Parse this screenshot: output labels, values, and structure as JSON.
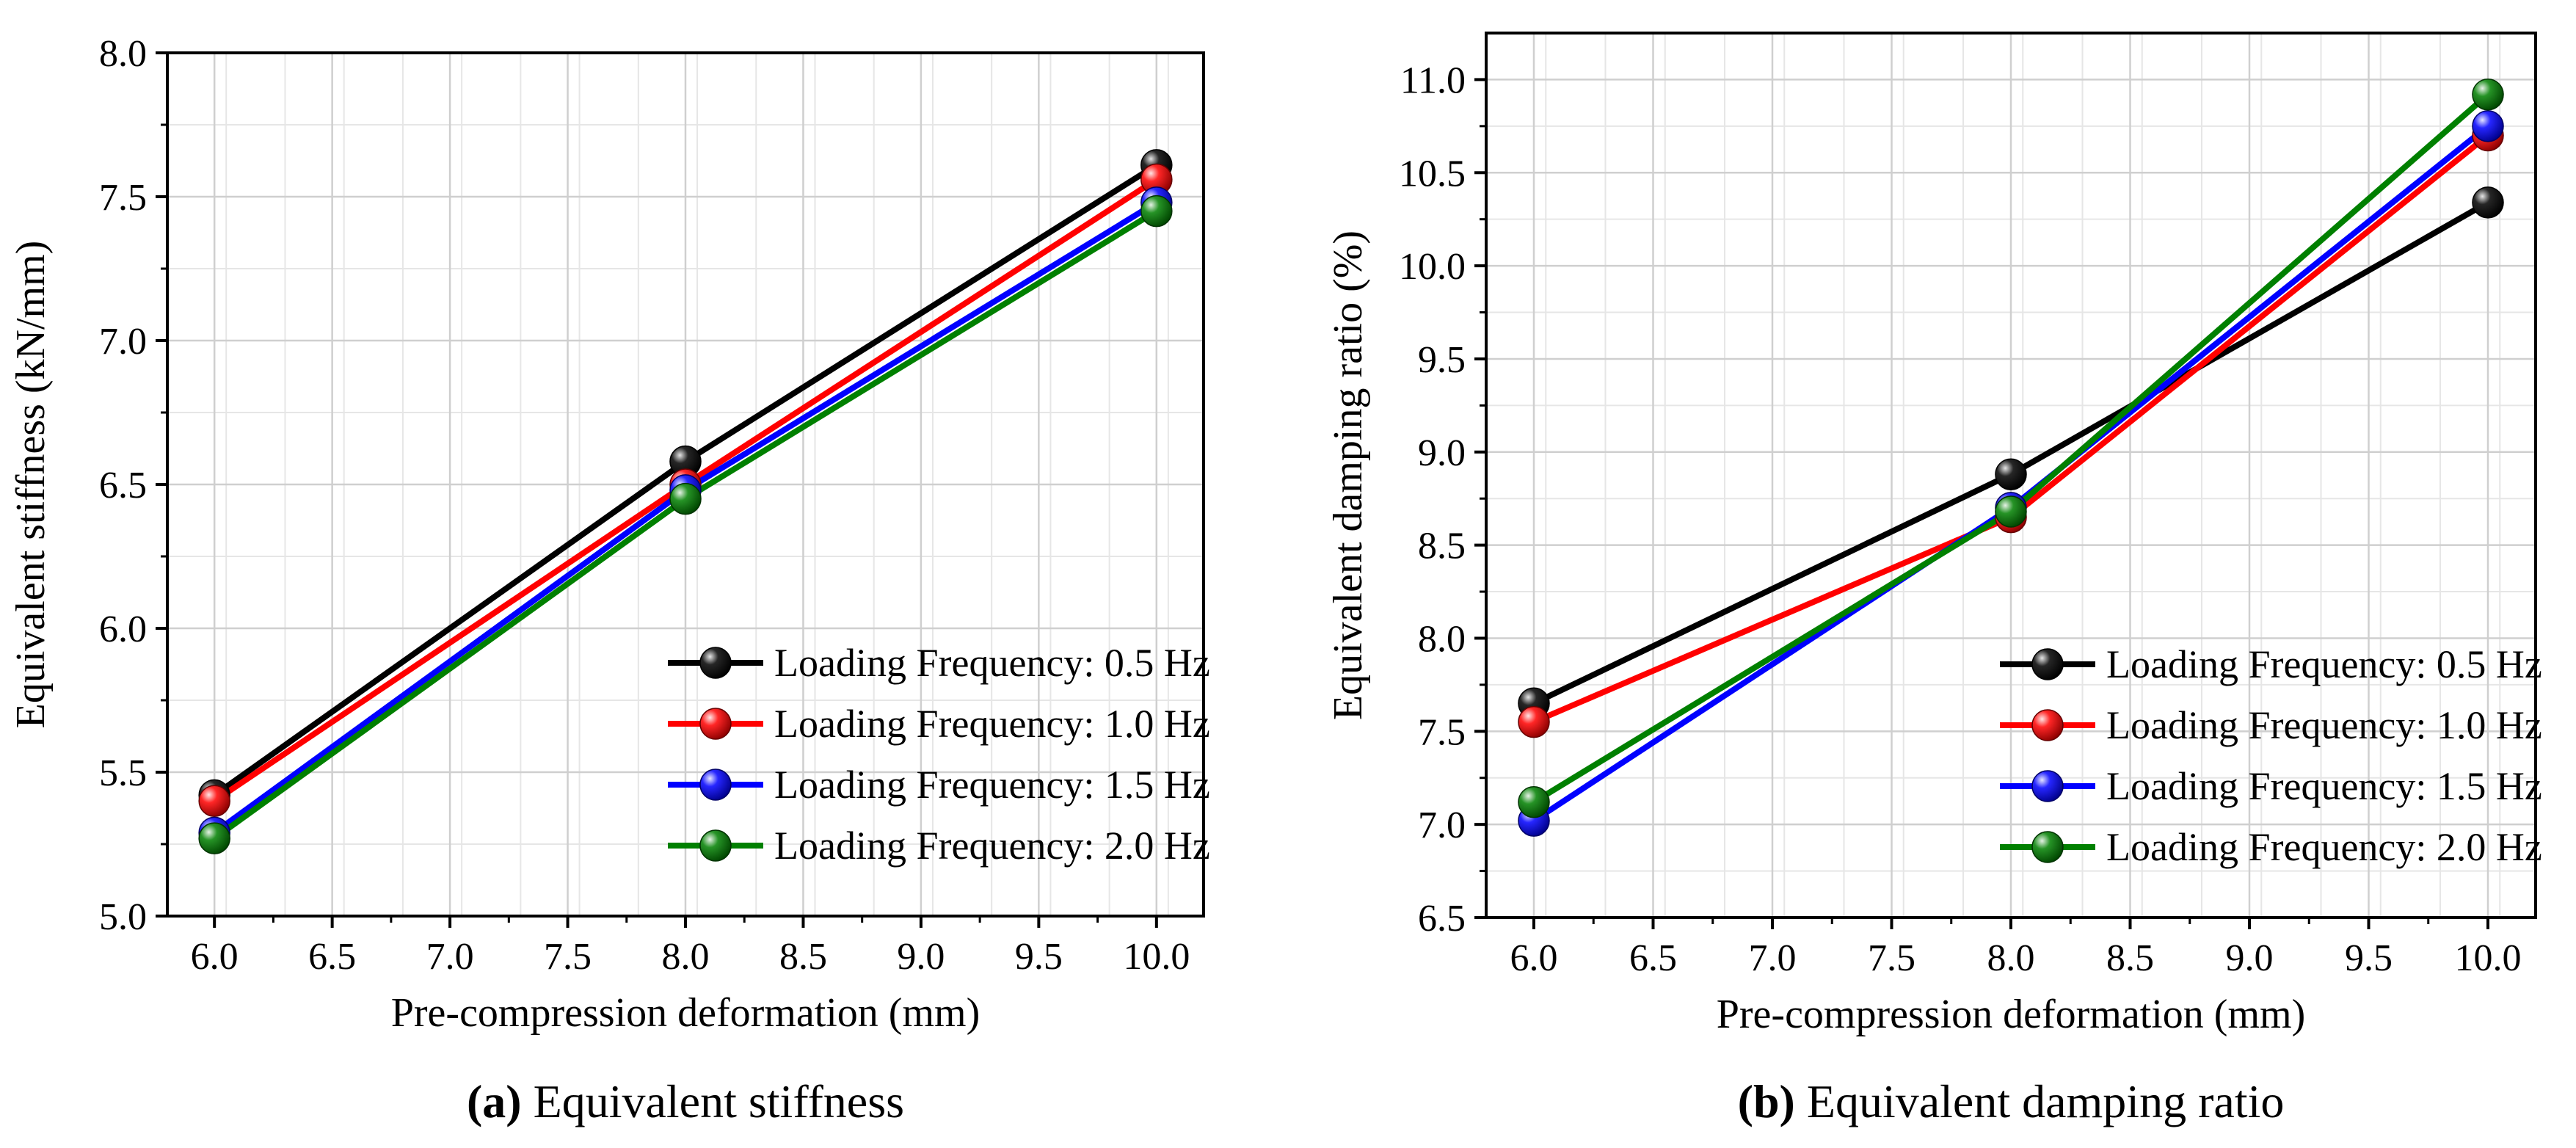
{
  "chart_data": [
    {
      "type": "line",
      "panel_label": "(a)",
      "caption": "Equivalent stiffness",
      "xlabel": "Pre-compression deformation (mm)",
      "ylabel": "Equivalent stiffness (kN/mm)",
      "xlim": [
        5.8,
        10.2
      ],
      "ylim": [
        5.0,
        8.0
      ],
      "xticks": [
        "6.0",
        "6.5",
        "7.0",
        "7.5",
        "8.0",
        "8.5",
        "9.0",
        "9.5",
        "10.0"
      ],
      "yticks": [
        "5.0",
        "5.5",
        "6.0",
        "6.5",
        "7.0",
        "7.5",
        "8.0"
      ],
      "grid": true,
      "legend_position": "bottom-right",
      "x": [
        6.0,
        8.0,
        10.0
      ],
      "series": [
        {
          "name": "Loading Frequency: 0.5 Hz",
          "color": "#000000",
          "values": [
            5.42,
            6.58,
            7.61
          ]
        },
        {
          "name": "Loading Frequency: 1.0 Hz",
          "color": "#ff0000",
          "values": [
            5.4,
            6.5,
            7.56
          ]
        },
        {
          "name": "Loading Frequency: 1.5 Hz",
          "color": "#0000ff",
          "values": [
            5.29,
            6.48,
            7.48
          ]
        },
        {
          "name": "Loading Frequency: 2.0 Hz",
          "color": "#008000",
          "values": [
            5.27,
            6.45,
            7.45
          ]
        }
      ]
    },
    {
      "type": "line",
      "panel_label": "(b)",
      "caption": "Equivalent damping ratio",
      "xlabel": "Pre-compression deformation (mm)",
      "ylabel": "Equivalent damping ratio (%)",
      "xlim": [
        5.8,
        10.2
      ],
      "ylim": [
        6.5,
        11.25
      ],
      "xticks": [
        "6.0",
        "6.5",
        "7.0",
        "7.5",
        "8.0",
        "8.5",
        "9.0",
        "9.5",
        "10.0"
      ],
      "yticks": [
        "6.5",
        "7.0",
        "7.5",
        "8.0",
        "8.5",
        "9.0",
        "9.5",
        "10.0",
        "10.5",
        "11.0"
      ],
      "grid": true,
      "legend_position": "bottom-right",
      "x": [
        6.0,
        8.0,
        10.0
      ],
      "series": [
        {
          "name": "Loading Frequency: 0.5 Hz",
          "color": "#000000",
          "values": [
            7.65,
            8.88,
            10.34
          ]
        },
        {
          "name": "Loading Frequency: 1.0 Hz",
          "color": "#ff0000",
          "values": [
            7.55,
            8.65,
            10.7
          ]
        },
        {
          "name": "Loading Frequency: 1.5 Hz",
          "color": "#0000ff",
          "values": [
            7.02,
            8.7,
            10.75
          ]
        },
        {
          "name": "Loading Frequency: 2.0 Hz",
          "color": "#008000",
          "values": [
            7.12,
            8.68,
            10.92
          ]
        }
      ]
    }
  ]
}
